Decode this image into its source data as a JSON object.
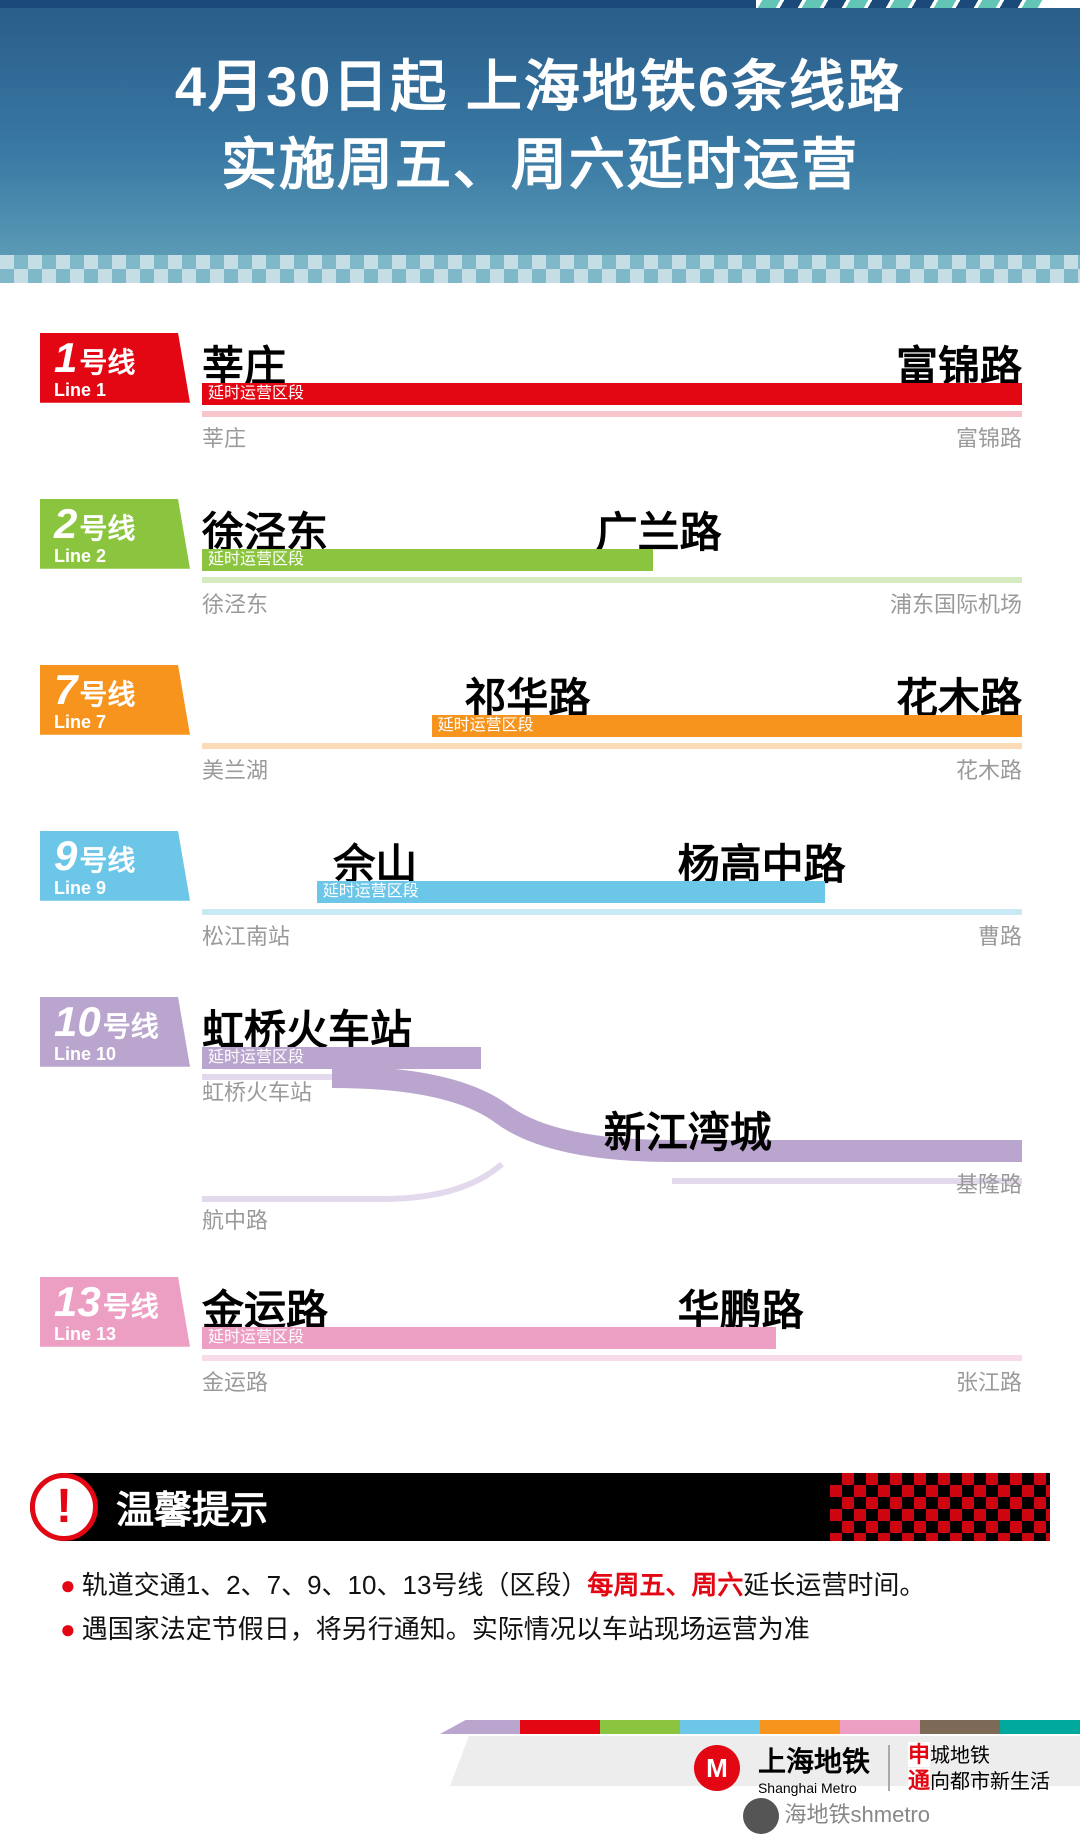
{
  "header": {
    "line1": "4月30日起  上海地铁6条线路",
    "line2": "实施周五、周六延时运营"
  },
  "ext_label": "延时运营区段",
  "lines": [
    {
      "id": "1",
      "num": "1",
      "cn": "号线",
      "en": "Line 1",
      "color": "#e30613",
      "light": "#f9c5cd",
      "ext_start": "莘庄",
      "ext_end": "富锦路",
      "ext_from_pct": 0,
      "ext_to_pct": 100,
      "full_start": "莘庄",
      "full_end": "富锦路",
      "station_positions": {
        "ext_start_pct": 0,
        "ext_end_pct": 100
      }
    },
    {
      "id": "2",
      "num": "2",
      "cn": "号线",
      "en": "Line 2",
      "color": "#8bc53f",
      "light": "#d7ebc0",
      "ext_start": "徐泾东",
      "ext_end": "广兰路",
      "ext_from_pct": 0,
      "ext_to_pct": 55,
      "full_start": "徐泾东",
      "full_end": "浦东国际机场",
      "station_positions": {
        "ext_start_pct": 0,
        "ext_end_pct": 48
      }
    },
    {
      "id": "7",
      "num": "7",
      "cn": "号线",
      "en": "Line 7",
      "color": "#f7941d",
      "light": "#fcdcb8",
      "ext_start": "祁华路",
      "ext_end": "花木路",
      "ext_from_pct": 28,
      "ext_to_pct": 100,
      "full_start": "美兰湖",
      "full_end": "花木路",
      "station_positions": {
        "ext_start_pct": 32,
        "ext_end_pct": 100
      }
    },
    {
      "id": "9",
      "num": "9",
      "cn": "号线",
      "en": "Line 9",
      "color": "#6cc6e8",
      "light": "#c9e9f5",
      "ext_start": "佘山",
      "ext_end": "杨高中路",
      "ext_from_pct": 14,
      "ext_to_pct": 76,
      "full_start": "松江南站",
      "full_end": "曹路",
      "station_positions": {
        "ext_start_pct": 16,
        "ext_end_pct": 58
      }
    },
    {
      "id": "10",
      "num": "10",
      "cn": "号线",
      "en": "Line 10",
      "color": "#b9a5cd",
      "light": "#e3d9ec",
      "ext_start": "虹桥火车站",
      "ext_end": "新江湾城",
      "branch": true,
      "full_start_top": "虹桥火车站",
      "full_end_top": "基隆路",
      "full_start_bottom": "航中路"
    },
    {
      "id": "13",
      "num": "13",
      "cn": "号线",
      "en": "Line 13",
      "color": "#ed9ec3",
      "light": "#f8dbe9",
      "ext_start": "金运路",
      "ext_end": "华鹏路",
      "ext_from_pct": 0,
      "ext_to_pct": 70,
      "full_start": "金运路",
      "full_end": "张江路",
      "station_positions": {
        "ext_start_pct": 0,
        "ext_end_pct": 58
      }
    }
  ],
  "notice": {
    "title": "温馨提示",
    "items": [
      {
        "pre": "轨道交通1、2、7、9、10、13号线（区段）",
        "hl": "每周五、周六",
        "post": "延长运营时间。"
      },
      {
        "pre": "遇国家法定节假日，将另行通知。实际情况以车站现场运营为准",
        "hl": "",
        "post": ""
      }
    ]
  },
  "footer": {
    "brand_cn": "上海地铁",
    "brand_en": "Shanghai Metro",
    "slogan1_r": "申",
    "slogan1": "城地铁",
    "slogan2_r": "通",
    "slogan2": "向都市新生活",
    "watermark": "海地铁shmetro",
    "rainbow": [
      "#b9a5cd",
      "#e30613",
      "#8bc53f",
      "#6cc6e8",
      "#f7941d",
      "#ed9ec3",
      "#7c6a56",
      "#00a99d"
    ]
  }
}
